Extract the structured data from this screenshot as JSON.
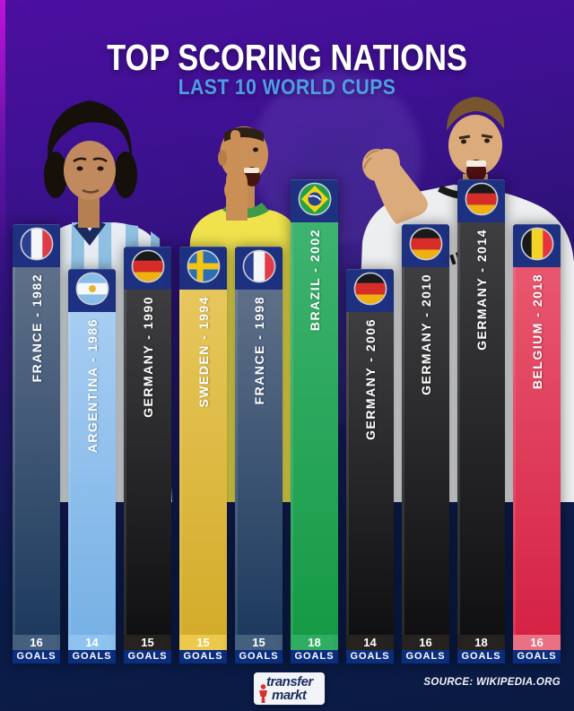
{
  "header": {
    "title": "TOP SCORING NATIONS",
    "subtitle": "LAST 10 WORLD CUPS"
  },
  "footer": {
    "logo_line1": "transfer",
    "logo_line2": "markt",
    "source": "SOURCE: WIKIPEDIA.ORG"
  },
  "goals_word": "GOALS",
  "colors": {
    "flag_header_blue": "#1e3180",
    "goals_strip_blue": "#0c2e7e",
    "subtitle_accent": "#4f9de8",
    "background_top_purple": "#4c0fa0",
    "background_bottom_navy": "#0a1a42"
  },
  "chart_data": {
    "type": "bar",
    "title": "TOP SCORING NATIONS",
    "subtitle": "LAST 10 WORLD CUPS",
    "unit": "GOALS",
    "legend": "none",
    "categories": [
      "FRANCE - 1982",
      "ARGENTINA - 1986",
      "GERMANY - 1990",
      "SWEDEN - 1994",
      "FRANCE - 1998",
      "BRAZIL - 2002",
      "GERMANY - 2006",
      "GERMANY - 2010",
      "GERMANY - 2014",
      "BELGIUM - 2018"
    ],
    "values": [
      16,
      14,
      15,
      15,
      15,
      18,
      14,
      16,
      18,
      16
    ],
    "bars": [
      {
        "label": "FRANCE - 1982",
        "nation": "France",
        "year": "1982",
        "goals": "16",
        "flag": "france-flag-icon",
        "color_top": "#5e7089",
        "color_bottom": "#1d3a5e",
        "strip_color": "#44607e"
      },
      {
        "label": "ARGENTINA - 1986",
        "nation": "Argentina",
        "year": "1986",
        "goals": "14",
        "flag": "argentina-flag-icon",
        "color_top": "#a7cdf2",
        "color_bottom": "#77b1e5",
        "strip_color": "#8fc3ef"
      },
      {
        "label": "GERMANY - 1990",
        "nation": "Germany",
        "year": "1990",
        "goals": "15",
        "flag": "germany-flag-icon",
        "color_top": "#3e3e40",
        "color_bottom": "#101012",
        "strip_color": "#26221f"
      },
      {
        "label": "SWEDEN - 1994",
        "nation": "Sweden",
        "year": "1994",
        "goals": "15",
        "flag": "sweden-flag-icon",
        "color_top": "#e7c75c",
        "color_bottom": "#d3ac2a",
        "strip_color": "#ecc94d"
      },
      {
        "label": "FRANCE - 1998",
        "nation": "France",
        "year": "1998",
        "goals": "15",
        "flag": "france-flag-icon",
        "color_top": "#5e7089",
        "color_bottom": "#1d3a5e",
        "strip_color": "#44607e"
      },
      {
        "label": "BRAZIL - 2002",
        "nation": "Brazil",
        "year": "2002",
        "goals": "18",
        "flag": "brazil-flag-icon",
        "color_top": "#3db370",
        "color_bottom": "#169a45",
        "strip_color": "#2fae62"
      },
      {
        "label": "GERMANY - 2006",
        "nation": "Germany",
        "year": "2006",
        "goals": "14",
        "flag": "germany-flag-icon",
        "color_top": "#3e3e40",
        "color_bottom": "#101012",
        "strip_color": "#26221f"
      },
      {
        "label": "GERMANY - 2010",
        "nation": "Germany",
        "year": "2010",
        "goals": "16",
        "flag": "germany-flag-icon",
        "color_top": "#3e3e40",
        "color_bottom": "#101012",
        "strip_color": "#26221f"
      },
      {
        "label": "GERMANY - 2014",
        "nation": "Germany",
        "year": "2014",
        "goals": "18",
        "flag": "germany-flag-icon",
        "color_top": "#3e3e40",
        "color_bottom": "#101012",
        "strip_color": "#26221f"
      },
      {
        "label": "BELGIUM - 2018",
        "nation": "Belgium",
        "year": "2018",
        "goals": "16",
        "flag": "belgium-flag-icon",
        "color_top": "#e9576e",
        "color_bottom": "#d52245",
        "strip_color": "#ea7083"
      }
    ]
  }
}
